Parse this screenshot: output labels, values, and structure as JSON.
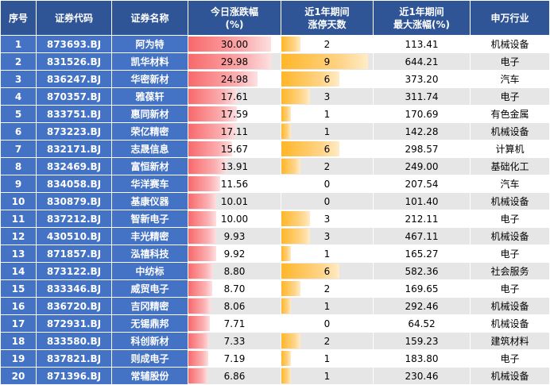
{
  "headers": {
    "index": "序号",
    "code": "证券代码",
    "name": "证券名称",
    "change_line1": "今日涨跌幅",
    "change_line2": "(%)",
    "limit_line1": "近1年期间",
    "limit_line2": "涨停天数",
    "max_line1": "近1年期间",
    "max_line2": "最大涨幅(%)",
    "industry": "申万行业"
  },
  "colors": {
    "header_bg": "#2f5597",
    "key_col_bg": "#4472c4",
    "alt_row_bg": "#e7e6e6",
    "bar_red": "#f8696b",
    "bar_orange": "#ffb628"
  },
  "rows": [
    {
      "index": "1",
      "code": "873693.BJ",
      "name": "阿为特",
      "change": "30.00",
      "limit_days": "2",
      "max_gain": "113.41",
      "industry": "机械设备"
    },
    {
      "index": "2",
      "code": "831526.BJ",
      "name": "凯华材料",
      "change": "29.98",
      "limit_days": "9",
      "max_gain": "644.21",
      "industry": "电子"
    },
    {
      "index": "3",
      "code": "836247.BJ",
      "name": "华密新材",
      "change": "24.98",
      "limit_days": "6",
      "max_gain": "373.20",
      "industry": "汽车"
    },
    {
      "index": "4",
      "code": "870357.BJ",
      "name": "雅葆轩",
      "change": "17.61",
      "limit_days": "3",
      "max_gain": "311.74",
      "industry": "电子"
    },
    {
      "index": "5",
      "code": "833751.BJ",
      "name": "惠同新材",
      "change": "17.59",
      "limit_days": "1",
      "max_gain": "170.69",
      "industry": "有色金属"
    },
    {
      "index": "6",
      "code": "873223.BJ",
      "name": "荣亿精密",
      "change": "17.11",
      "limit_days": "1",
      "max_gain": "142.28",
      "industry": "机械设备"
    },
    {
      "index": "7",
      "code": "832171.BJ",
      "name": "志晟信息",
      "change": "15.67",
      "limit_days": "6",
      "max_gain": "298.57",
      "industry": "计算机"
    },
    {
      "index": "8",
      "code": "832469.BJ",
      "name": "富恒新材",
      "change": "13.91",
      "limit_days": "2",
      "max_gain": "249.00",
      "industry": "基础化工"
    },
    {
      "index": "9",
      "code": "834058.BJ",
      "name": "华洋赛车",
      "change": "11.56",
      "limit_days": "0",
      "max_gain": "207.54",
      "industry": "汽车"
    },
    {
      "index": "10",
      "code": "830879.BJ",
      "name": "基康仪器",
      "change": "10.01",
      "limit_days": "0",
      "max_gain": "101.40",
      "industry": "机械设备"
    },
    {
      "index": "11",
      "code": "837212.BJ",
      "name": "智新电子",
      "change": "10.00",
      "limit_days": "3",
      "max_gain": "212.11",
      "industry": "电子"
    },
    {
      "index": "12",
      "code": "430510.BJ",
      "name": "丰光精密",
      "change": "9.93",
      "limit_days": "3",
      "max_gain": "467.11",
      "industry": "机械设备"
    },
    {
      "index": "13",
      "code": "871857.BJ",
      "name": "泓禧科技",
      "change": "9.92",
      "limit_days": "1",
      "max_gain": "165.27",
      "industry": "电子"
    },
    {
      "index": "14",
      "code": "873122.BJ",
      "name": "中纺标",
      "change": "8.80",
      "limit_days": "6",
      "max_gain": "582.36",
      "industry": "社会服务"
    },
    {
      "index": "15",
      "code": "833346.BJ",
      "name": "威贸电子",
      "change": "8.70",
      "limit_days": "2",
      "max_gain": "169.65",
      "industry": "电子"
    },
    {
      "index": "16",
      "code": "836720.BJ",
      "name": "吉冈精密",
      "change": "8.06",
      "limit_days": "1",
      "max_gain": "292.46",
      "industry": "机械设备"
    },
    {
      "index": "17",
      "code": "872931.BJ",
      "name": "无锡鼎邦",
      "change": "7.71",
      "limit_days": "0",
      "max_gain": "64.52",
      "industry": "机械设备"
    },
    {
      "index": "18",
      "code": "833580.BJ",
      "name": "科创新材",
      "change": "7.33",
      "limit_days": "2",
      "max_gain": "159.23",
      "industry": "建筑材料"
    },
    {
      "index": "19",
      "code": "837821.BJ",
      "name": "则成电子",
      "change": "7.19",
      "limit_days": "1",
      "max_gain": "183.80",
      "industry": "电子"
    },
    {
      "index": "20",
      "code": "871396.BJ",
      "name": "常辅股份",
      "change": "6.86",
      "limit_days": "1",
      "max_gain": "230.46",
      "industry": "机械设备"
    }
  ]
}
